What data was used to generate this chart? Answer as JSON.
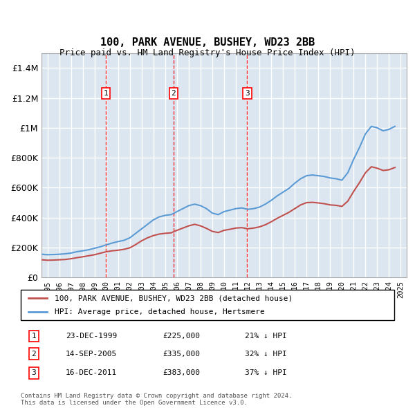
{
  "title": "100, PARK AVENUE, BUSHEY, WD23 2BB",
  "subtitle": "Price paid vs. HM Land Registry's House Price Index (HPI)",
  "ylabel": "",
  "background_color": "#dce6f0",
  "plot_bg_color": "#dce6f0",
  "grid_color": "#ffffff",
  "red_line_label": "100, PARK AVENUE, BUSHEY, WD23 2BB (detached house)",
  "blue_line_label": "HPI: Average price, detached house, Hertsmere",
  "footer": "Contains HM Land Registry data © Crown copyright and database right 2024.\nThis data is licensed under the Open Government Licence v3.0.",
  "transactions": [
    {
      "num": 1,
      "date": "23-DEC-1999",
      "price": "£225,000",
      "pct": "21% ↓ HPI",
      "x": 1999.97
    },
    {
      "num": 2,
      "date": "14-SEP-2005",
      "price": "£335,000",
      "pct": "32% ↓ HPI",
      "x": 2005.71
    },
    {
      "num": 3,
      "date": "16-DEC-2011",
      "price": "£383,000",
      "pct": "37% ↓ HPI",
      "x": 2011.96
    }
  ],
  "transaction_prices": [
    225000,
    335000,
    383000
  ],
  "ylim": [
    0,
    1500000
  ],
  "xlim_start": 1994.5,
  "xlim_end": 2025.5,
  "hpi_data": {
    "years": [
      1994.5,
      1995.0,
      1995.5,
      1996.0,
      1996.5,
      1997.0,
      1997.5,
      1998.0,
      1998.5,
      1999.0,
      1999.5,
      2000.0,
      2000.5,
      2001.0,
      2001.5,
      2002.0,
      2002.5,
      2003.0,
      2003.5,
      2004.0,
      2004.5,
      2005.0,
      2005.5,
      2006.0,
      2006.5,
      2007.0,
      2007.5,
      2008.0,
      2008.5,
      2009.0,
      2009.5,
      2010.0,
      2010.5,
      2011.0,
      2011.5,
      2012.0,
      2012.5,
      2013.0,
      2013.5,
      2014.0,
      2014.5,
      2015.0,
      2015.5,
      2016.0,
      2016.5,
      2017.0,
      2017.5,
      2018.0,
      2018.5,
      2019.0,
      2019.5,
      2020.0,
      2020.5,
      2021.0,
      2021.5,
      2022.0,
      2022.5,
      2023.0,
      2023.5,
      2024.0,
      2024.5
    ],
    "values": [
      155000,
      152000,
      153000,
      155000,
      158000,
      163000,
      172000,
      178000,
      185000,
      195000,
      205000,
      218000,
      230000,
      240000,
      248000,
      265000,
      295000,
      325000,
      355000,
      385000,
      405000,
      415000,
      420000,
      440000,
      460000,
      480000,
      490000,
      480000,
      460000,
      430000,
      420000,
      440000,
      450000,
      460000,
      465000,
      455000,
      460000,
      470000,
      490000,
      515000,
      545000,
      570000,
      595000,
      630000,
      660000,
      680000,
      685000,
      680000,
      675000,
      665000,
      660000,
      650000,
      700000,
      790000,
      870000,
      960000,
      1010000,
      1000000,
      980000,
      990000,
      1010000
    ]
  },
  "red_data": {
    "years": [
      1994.5,
      1995.0,
      1995.5,
      1996.0,
      1996.5,
      1997.0,
      1997.5,
      1998.0,
      1998.5,
      1999.0,
      1999.5,
      2000.0,
      2000.5,
      2001.0,
      2001.5,
      2002.0,
      2002.5,
      2003.0,
      2003.5,
      2004.0,
      2004.5,
      2005.0,
      2005.5,
      2006.0,
      2006.5,
      2007.0,
      2007.5,
      2008.0,
      2008.5,
      2009.0,
      2009.5,
      2010.0,
      2010.5,
      2011.0,
      2011.5,
      2012.0,
      2012.5,
      2013.0,
      2013.5,
      2014.0,
      2014.5,
      2015.0,
      2015.5,
      2016.0,
      2016.5,
      2017.0,
      2017.5,
      2018.0,
      2018.5,
      2019.0,
      2019.5,
      2020.0,
      2020.5,
      2021.0,
      2021.5,
      2022.0,
      2022.5,
      2023.0,
      2023.5,
      2024.0,
      2024.5
    ],
    "values": [
      118000,
      115000,
      116000,
      118000,
      120000,
      125000,
      132000,
      138000,
      145000,
      152000,
      162000,
      172000,
      178000,
      182000,
      188000,
      198000,
      220000,
      245000,
      265000,
      280000,
      290000,
      295000,
      298000,
      315000,
      330000,
      345000,
      355000,
      345000,
      328000,
      308000,
      300000,
      315000,
      322000,
      330000,
      333000,
      325000,
      330000,
      338000,
      352000,
      372000,
      395000,
      415000,
      435000,
      460000,
      485000,
      500000,
      502000,
      498000,
      493000,
      485000,
      482000,
      475000,
      510000,
      575000,
      635000,
      700000,
      740000,
      730000,
      715000,
      720000,
      735000
    ]
  }
}
